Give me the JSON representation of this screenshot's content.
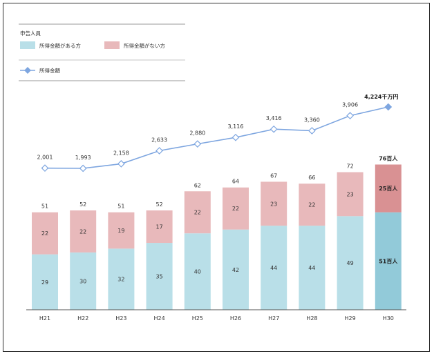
{
  "chart_data": {
    "type": "bar",
    "stacked": true,
    "categories": [
      "H21",
      "H22",
      "H23",
      "H24",
      "H25",
      "H26",
      "H27",
      "H28",
      "H29",
      "H30"
    ],
    "legend": {
      "group_title": "申告人員",
      "bar_with_income": "所得金額がある方",
      "bar_without_income": "所得金額がない方",
      "line": "所得金額"
    },
    "series": [
      {
        "name": "所得金額がある方",
        "kind": "bar",
        "values": [
          29,
          30,
          32,
          35,
          40,
          42,
          44,
          44,
          49,
          51
        ],
        "color": "#b9dfe8",
        "highlight_color": "#92cad9"
      },
      {
        "name": "所得金額がない方",
        "kind": "bar",
        "values": [
          22,
          22,
          19,
          17,
          22,
          22,
          23,
          22,
          23,
          25
        ],
        "color": "#e8b9bb",
        "highlight_color": "#d99193"
      },
      {
        "name": "所得金額",
        "kind": "line",
        "values": [
          2001,
          1993,
          2158,
          2633,
          2880,
          3116,
          3416,
          3360,
          3906,
          4224
        ],
        "color": "#7ea6e0"
      }
    ],
    "bar_labels": {
      "with_income": [
        "29",
        "30",
        "32",
        "35",
        "40",
        "42",
        "44",
        "44",
        "49",
        "51百人"
      ],
      "without_income": [
        "22",
        "22",
        "19",
        "17",
        "22",
        "22",
        "23",
        "22",
        "23",
        "25百人"
      ],
      "totals": [
        "51",
        "52",
        "51",
        "52",
        "62",
        "64",
        "67",
        "66",
        "72",
        "76百人"
      ]
    },
    "line_labels": [
      "2,001",
      "1,993",
      "2,158",
      "2,633",
      "2,880",
      "3,116",
      "3,416",
      "3,360",
      "3,906",
      "4,224千万円"
    ],
    "highlight_index": 9
  }
}
